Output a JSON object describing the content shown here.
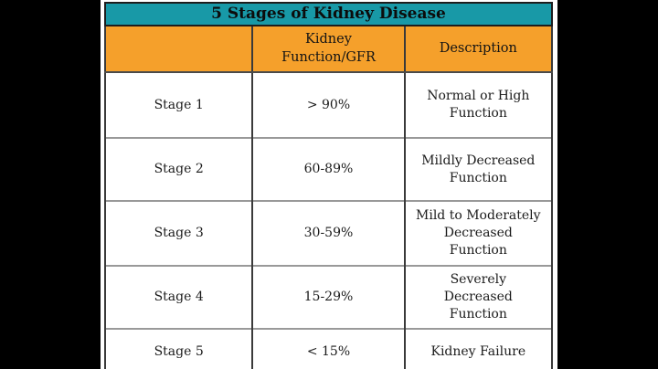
{
  "title": "5 Stages of Kidney Disease",
  "colors": {
    "title_bar_teal": "#1899A7",
    "header_orange": "#F5A02B",
    "text": "#1b1b1b",
    "letterbox": "#000000",
    "gridline_horizontal": "#999999",
    "gridline_vertical": "#3a3a3a"
  },
  "table": {
    "columns": [
      "",
      "Kidney Function/GFR",
      "Description"
    ],
    "rows": [
      {
        "stage": "Stage 1",
        "gfr": "> 90%",
        "description": "Normal or High Function"
      },
      {
        "stage": "Stage 2",
        "gfr": "60-89%",
        "description": "Mildly Decreased Function"
      },
      {
        "stage": "Stage 3",
        "gfr": "30-59%",
        "description": "Mild to Moderately Decreased Function"
      },
      {
        "stage": "Stage 4",
        "gfr": "15-29%",
        "description": "Severely Decreased Function"
      },
      {
        "stage": "Stage 5",
        "gfr": "< 15%",
        "description": "Kidney Failure"
      }
    ]
  }
}
